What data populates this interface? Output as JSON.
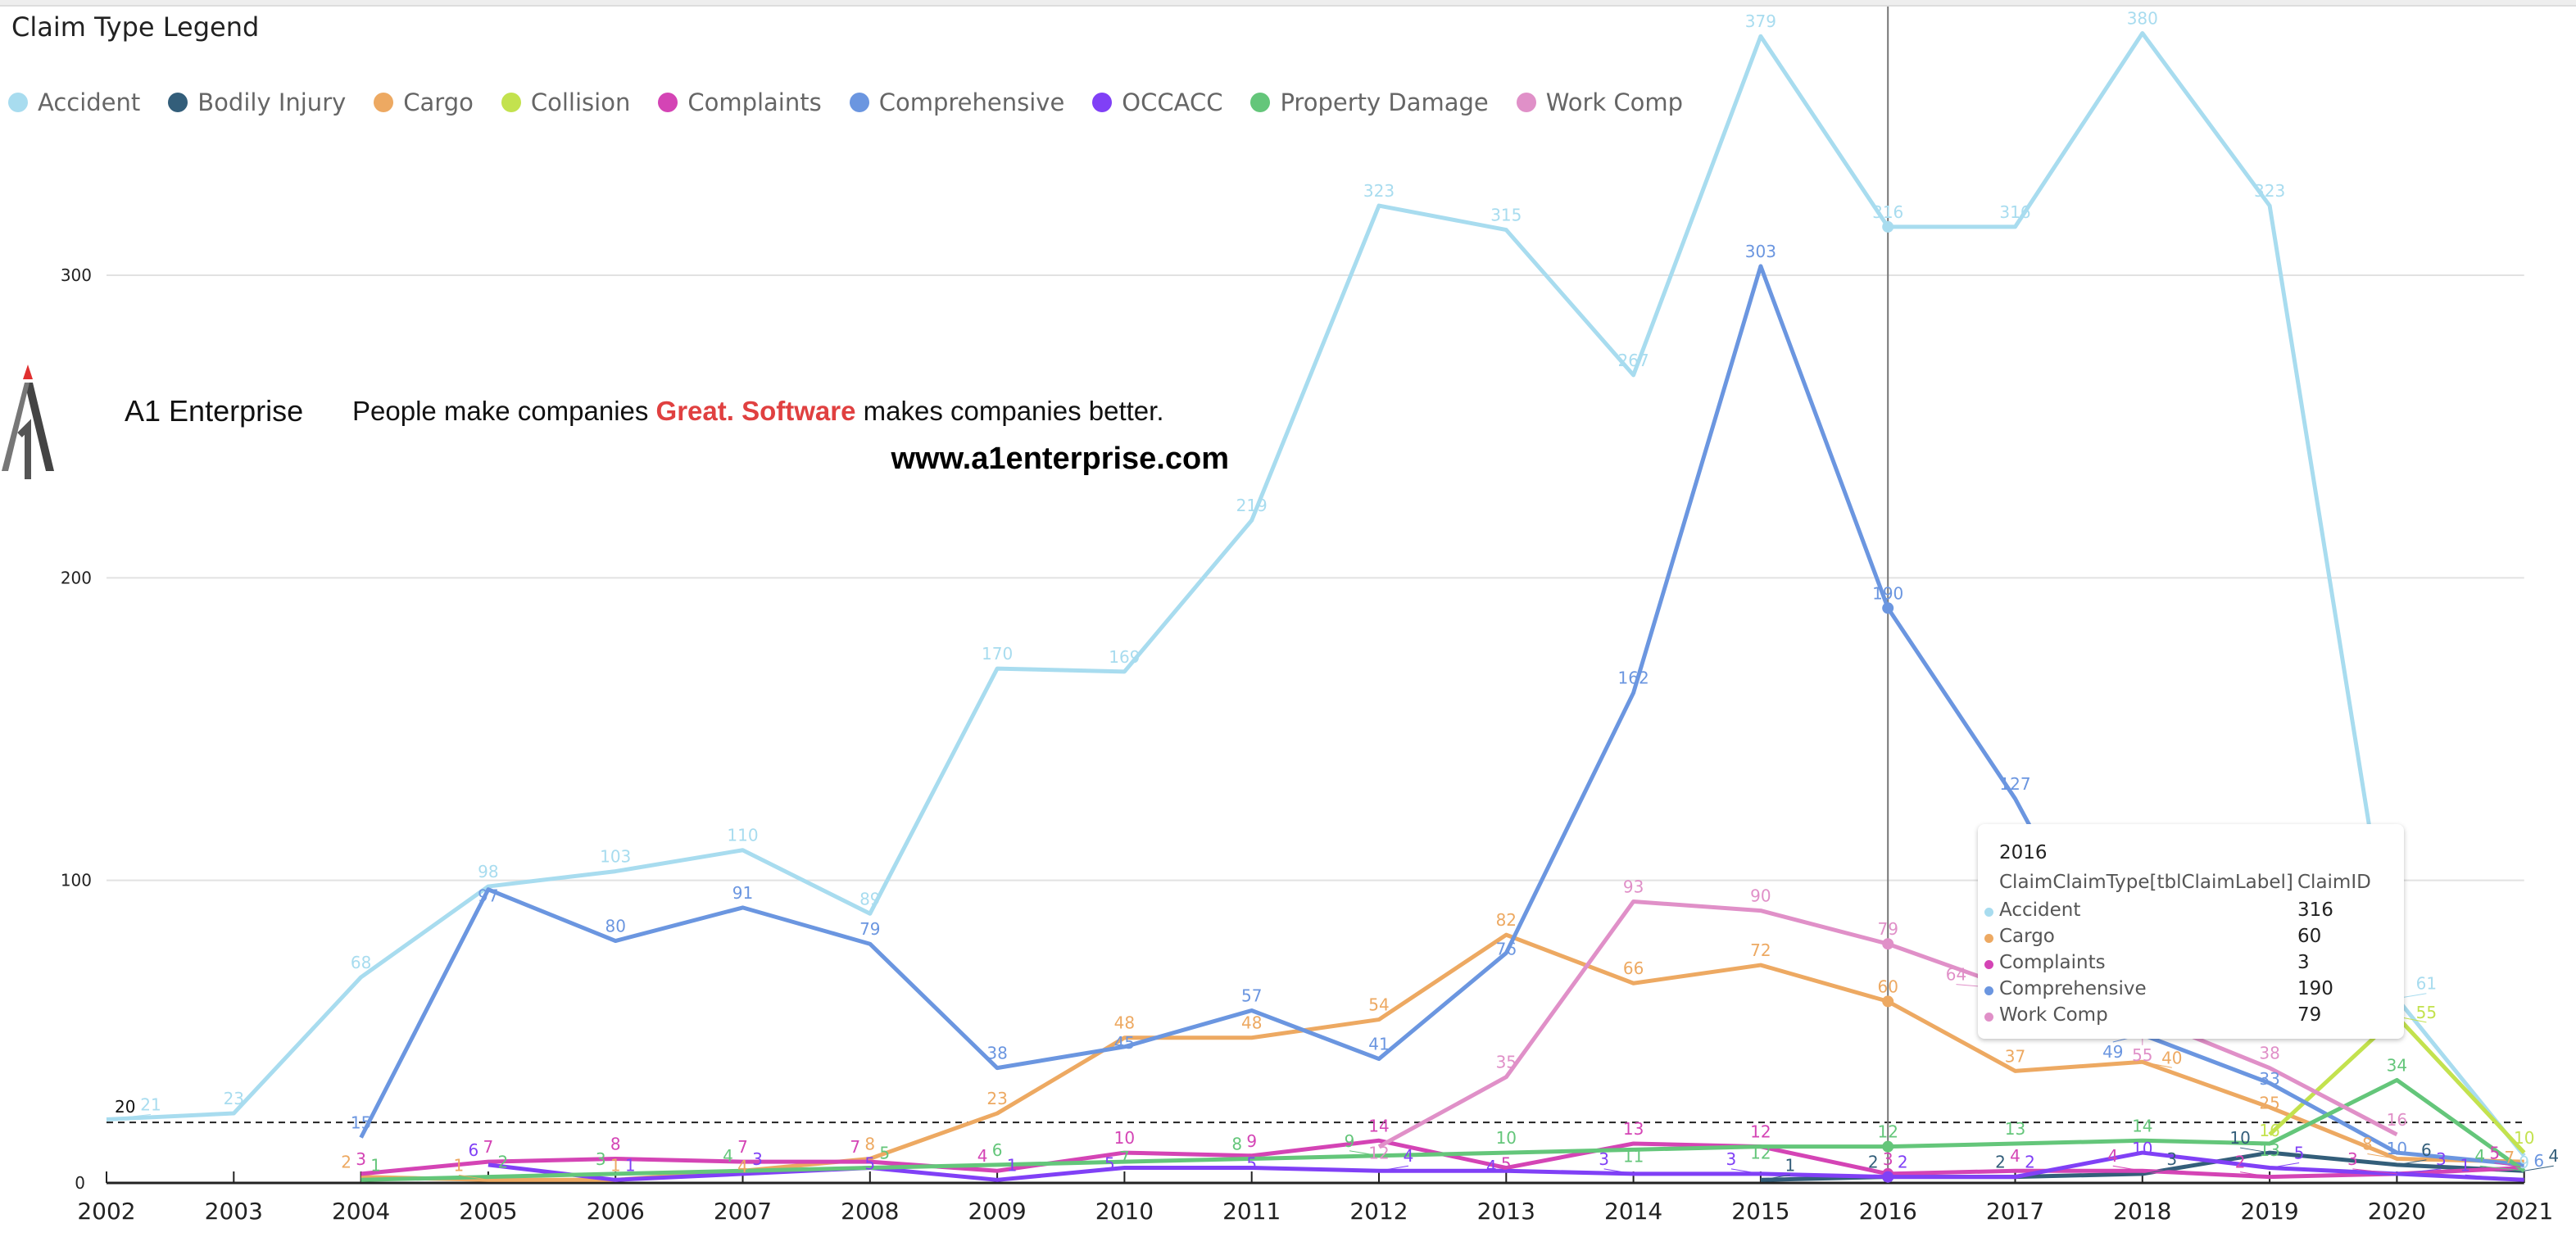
{
  "legend": {
    "title": "Claim Type Legend",
    "items": [
      {
        "label": "Accident",
        "color": "#a8dcef"
      },
      {
        "label": "Bodily Injury",
        "color": "#335e7a"
      },
      {
        "label": "Cargo",
        "color": "#eda962"
      },
      {
        "label": "Collision",
        "color": "#c3e24e"
      },
      {
        "label": "Complaints",
        "color": "#d444b5"
      },
      {
        "label": "Comprehensive",
        "color": "#6b96e0"
      },
      {
        "label": "OCCACC",
        "color": "#8040f6"
      },
      {
        "label": "Property Damage",
        "color": "#64c67a"
      },
      {
        "label": "Work Comp",
        "color": "#e090c8"
      }
    ]
  },
  "logo": {
    "brand": "A1 Enterprise",
    "tag_pre": "People make companies ",
    "tag_hl": "Great. Software",
    "tag_post": " makes companies better.",
    "url": "www.a1enterprise.com"
  },
  "tooltip": {
    "title": "2016",
    "col1": "ClaimClaimType[tblClaimLabel]",
    "col2": "ClaimID",
    "rows": [
      {
        "name": "Accident",
        "value": "316",
        "color": "#a8dcef"
      },
      {
        "name": "Cargo",
        "value": "60",
        "color": "#eda962"
      },
      {
        "name": "Complaints",
        "value": "3",
        "color": "#d444b5"
      },
      {
        "name": "Comprehensive",
        "value": "190",
        "color": "#6b96e0"
      },
      {
        "name": "Work Comp",
        "value": "79",
        "color": "#e090c8"
      }
    ]
  },
  "chart_data": {
    "type": "line",
    "title": "Claim Type Legend",
    "xlabel": "",
    "ylabel": "",
    "x": [
      2002,
      2003,
      2004,
      2005,
      2006,
      2007,
      2008,
      2009,
      2010,
      2011,
      2012,
      2013,
      2014,
      2015,
      2016,
      2017,
      2018,
      2019,
      2020,
      2021
    ],
    "ylim": [
      0,
      400
    ],
    "yticks": [
      0,
      100,
      200,
      300
    ],
    "grid": true,
    "legend_position": "top-left",
    "reference_line": {
      "value": 20,
      "label": "20"
    },
    "hover_year": 2016,
    "series": [
      {
        "name": "Accident",
        "color": "#a8dcef",
        "values": [
          21,
          23,
          68,
          98,
          103,
          110,
          89,
          170,
          169,
          219,
          323,
          315,
          267,
          379,
          316,
          316,
          380,
          323,
          61,
          9
        ]
      },
      {
        "name": "Bodily Injury",
        "color": "#335e7a",
        "values": [
          null,
          null,
          null,
          null,
          null,
          null,
          null,
          null,
          null,
          null,
          null,
          null,
          null,
          1,
          2,
          2,
          3,
          10,
          6,
          4
        ]
      },
      {
        "name": "Cargo",
        "color": "#eda962",
        "values": [
          null,
          null,
          2,
          1,
          1,
          4,
          8,
          23,
          48,
          48,
          54,
          82,
          66,
          72,
          60,
          37,
          40,
          25,
          8,
          7
        ]
      },
      {
        "name": "Collision",
        "color": "#c3e24e",
        "values": [
          null,
          null,
          null,
          null,
          null,
          null,
          null,
          null,
          null,
          null,
          null,
          null,
          null,
          null,
          null,
          null,
          null,
          16,
          55,
          10
        ]
      },
      {
        "name": "Complaints",
        "color": "#d444b5",
        "values": [
          null,
          null,
          3,
          7,
          8,
          7,
          7,
          4,
          10,
          9,
          14,
          5,
          13,
          12,
          3,
          4,
          4,
          2,
          3,
          5
        ]
      },
      {
        "name": "Comprehensive",
        "color": "#6b96e0",
        "values": [
          null,
          null,
          15,
          97,
          80,
          91,
          79,
          38,
          45,
          57,
          41,
          76,
          162,
          303,
          190,
          127,
          49,
          33,
          10,
          6
        ]
      },
      {
        "name": "OCCACC",
        "color": "#8040f6",
        "values": [
          null,
          null,
          null,
          6,
          1,
          3,
          5,
          1,
          5,
          5,
          4,
          4,
          3,
          3,
          2,
          2,
          10,
          5,
          3,
          1
        ]
      },
      {
        "name": "Property Damage",
        "color": "#64c67a",
        "values": [
          null,
          null,
          1,
          2,
          3,
          4,
          5,
          6,
          7,
          8,
          9,
          10,
          11,
          12,
          12,
          13,
          14,
          13,
          34,
          4
        ]
      },
      {
        "name": "Work Comp",
        "color": "#e090c8",
        "values": [
          null,
          null,
          null,
          null,
          null,
          null,
          null,
          null,
          null,
          null,
          12,
          35,
          93,
          90,
          79,
          64,
          55,
          38,
          16,
          null
        ]
      }
    ]
  }
}
